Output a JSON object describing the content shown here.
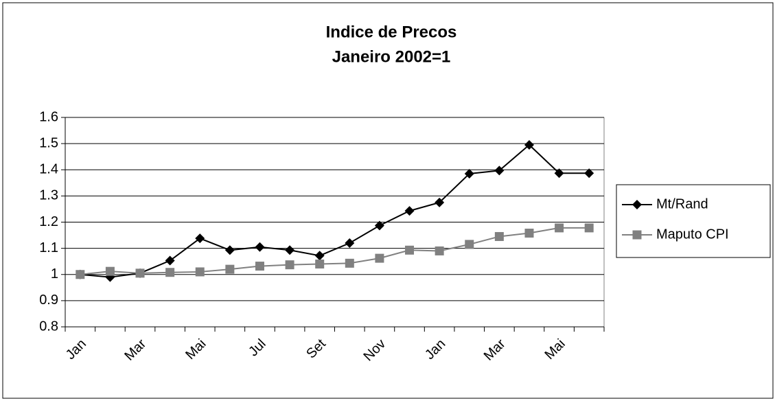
{
  "chart_data": {
    "type": "line",
    "title": [
      "Indice de Precos",
      "Janeiro  2002=1"
    ],
    "categories": [
      "Jan",
      null,
      "Mar",
      null,
      "Mai",
      null,
      "Jul",
      null,
      "Set",
      null,
      "Nov",
      null,
      "Jan",
      null,
      "Mar",
      null,
      "Mai",
      null
    ],
    "series": [
      {
        "name": "Mt/Rand",
        "color": "#000000",
        "marker": "diamond",
        "values": [
          1.0,
          0.99,
          1.005,
          1.053,
          1.138,
          1.093,
          1.105,
          1.093,
          1.072,
          1.12,
          1.187,
          1.243,
          1.275,
          1.385,
          1.397,
          1.495,
          1.387,
          1.387
        ]
      },
      {
        "name": "Maputo CPI",
        "color": "#808080",
        "marker": "square",
        "values": [
          1.0,
          1.012,
          1.005,
          1.008,
          1.01,
          1.02,
          1.032,
          1.037,
          1.04,
          1.043,
          1.062,
          1.093,
          1.09,
          1.115,
          1.145,
          1.158,
          1.178,
          1.178
        ]
      }
    ],
    "ylim": [
      0.8,
      1.6
    ],
    "yticks": [
      0.8,
      0.9,
      1,
      1.1,
      1.2,
      1.3,
      1.4,
      1.5,
      1.6
    ],
    "grid": true,
    "legend": "right"
  }
}
